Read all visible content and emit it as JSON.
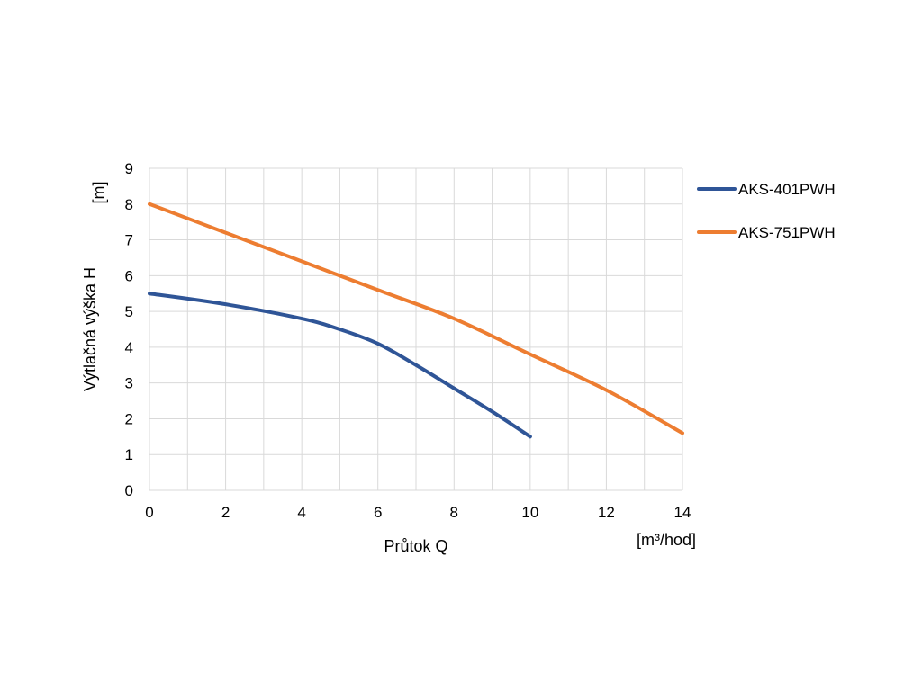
{
  "chart_data": {
    "type": "line",
    "xlabel": "Průtok Q",
    "x_unit": "[m³/hod]",
    "ylabel": "Výtlačná výška H",
    "y_unit": "[m]",
    "xlim": [
      0,
      14
    ],
    "ylim": [
      0,
      9
    ],
    "x_ticks": [
      0,
      2,
      4,
      6,
      8,
      10,
      12,
      14
    ],
    "y_ticks": [
      0,
      1,
      2,
      3,
      4,
      5,
      6,
      7,
      8,
      9
    ],
    "grid": true,
    "legend_position": "right",
    "series": [
      {
        "name": "AKS-401PWH",
        "color": "#2f5597",
        "points": [
          {
            "x": 0,
            "y": 5.5
          },
          {
            "x": 2,
            "y": 5.2
          },
          {
            "x": 4,
            "y": 4.8
          },
          {
            "x": 5,
            "y": 4.5
          },
          {
            "x": 6,
            "y": 4.1
          },
          {
            "x": 7,
            "y": 3.5
          },
          {
            "x": 8,
            "y": 2.85
          },
          {
            "x": 9,
            "y": 2.2
          },
          {
            "x": 10,
            "y": 1.5
          }
        ]
      },
      {
        "name": "AKS-751PWH",
        "color": "#ed7d31",
        "points": [
          {
            "x": 0,
            "y": 8.0
          },
          {
            "x": 2,
            "y": 7.2
          },
          {
            "x": 4,
            "y": 6.4
          },
          {
            "x": 6,
            "y": 5.6
          },
          {
            "x": 8,
            "y": 4.8
          },
          {
            "x": 10,
            "y": 3.8
          },
          {
            "x": 12,
            "y": 2.8
          },
          {
            "x": 14,
            "y": 1.6
          }
        ]
      }
    ]
  }
}
